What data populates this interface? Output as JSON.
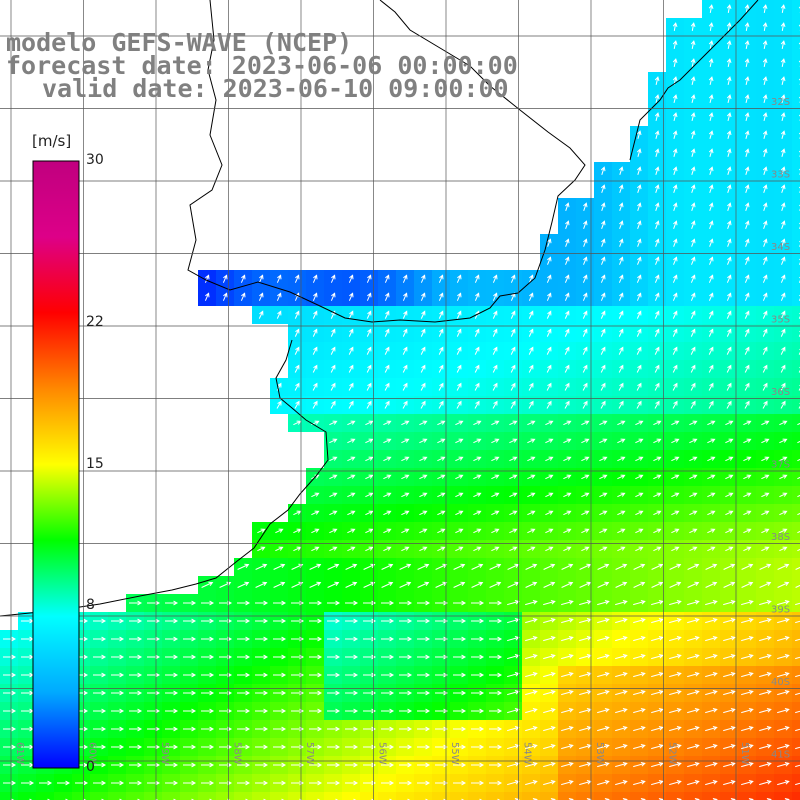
{
  "title": {
    "line1": "modelo GEFS-WAVE (NCEP)",
    "line2": "forecast date: 2023-06-06 00:00:00",
    "line3": "valid date: 2023-06-10 09:00:00"
  },
  "colorbar": {
    "units": "[m/s]",
    "min": 0,
    "max": 30,
    "ticks": [
      {
        "value": 30,
        "label": "30"
      },
      {
        "value": 22,
        "label": "22"
      },
      {
        "value": 15,
        "label": "15"
      },
      {
        "value": 8,
        "label": "8"
      },
      {
        "value": 0,
        "label": "0"
      }
    ],
    "colors": [
      "#0000ff",
      "#00aaff",
      "#00ffff",
      "#00ff00",
      "#ffff00",
      "#ff8800",
      "#ff0000",
      "#dd0088",
      "#c0007f"
    ]
  },
  "map": {
    "lat_labels": [
      "32S",
      "33S",
      "34S",
      "35S",
      "36S",
      "37S",
      "38S",
      "39S",
      "40S",
      "41S"
    ],
    "lon_labels": [
      "61W",
      "60W",
      "59W",
      "58W",
      "57W",
      "56W",
      "55W",
      "54W",
      "53W",
      "52W",
      "51W"
    ],
    "land_color": "#ffffff",
    "coast_color": "#000000",
    "grid_color": "#555555"
  }
}
